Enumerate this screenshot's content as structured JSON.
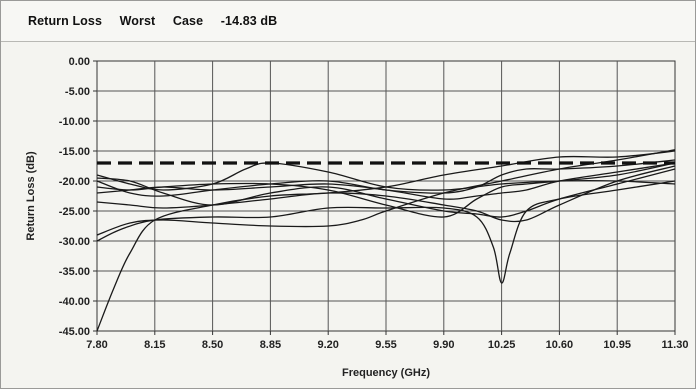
{
  "header": {
    "label": "Return Loss",
    "worst": "Worst",
    "case": "Case",
    "value": "-14.83 dB"
  },
  "chart_data": {
    "type": "line",
    "title": "",
    "xlabel": "Frequency (GHz)",
    "ylabel": "Return Loss (dB)",
    "xlim": [
      7.8,
      11.3
    ],
    "ylim": [
      -45,
      0
    ],
    "x_ticks": [
      "7.80",
      "8.15",
      "8.50",
      "8.85",
      "9.20",
      "9.55",
      "9.90",
      "10.25",
      "10.60",
      "10.95",
      "11.30"
    ],
    "y_ticks": [
      "0.00",
      "-5.00",
      "-10.00",
      "-15.00",
      "-20.00",
      "-25.00",
      "-30.00",
      "-35.00",
      "-40.00",
      "-45.00"
    ],
    "grid": true,
    "spec_limit": {
      "y": -17.0,
      "style": "dashed"
    },
    "series": [
      {
        "x": [
          7.8,
          8.0,
          8.2,
          8.5,
          8.85,
          9.2,
          9.55,
          9.9,
          10.1,
          10.25,
          10.4,
          10.6,
          10.95,
          11.3
        ],
        "y": [
          -19.5,
          -20.0,
          -22.0,
          -24.0,
          -22.0,
          -21.0,
          -23.0,
          -25.0,
          -25.5,
          -26.0,
          -25.0,
          -23.0,
          -20.5,
          -18.0
        ]
      },
      {
        "x": [
          7.8,
          8.0,
          8.2,
          8.5,
          8.85,
          9.2,
          9.55,
          9.9,
          10.1,
          10.25,
          10.4,
          10.6,
          10.95,
          11.3
        ],
        "y": [
          -21.0,
          -21.5,
          -21.0,
          -20.5,
          -20.5,
          -21.5,
          -24.0,
          -26.0,
          -23.0,
          -21.0,
          -20.5,
          -20.0,
          -19.0,
          -17.0
        ]
      },
      {
        "x": [
          7.8,
          8.0,
          8.2,
          8.5,
          8.85,
          9.2,
          9.55,
          9.9,
          10.1,
          10.25,
          10.4,
          10.6,
          10.95,
          11.3
        ],
        "y": [
          -22.0,
          -21.5,
          -21.0,
          -21.5,
          -21.0,
          -20.5,
          -21.5,
          -23.0,
          -22.5,
          -22.0,
          -21.5,
          -20.0,
          -18.5,
          -17.0
        ]
      },
      {
        "x": [
          7.8,
          8.0,
          8.2,
          8.5,
          8.85,
          9.2,
          9.55,
          9.9,
          10.1,
          10.25,
          10.4,
          10.6,
          10.95,
          11.3
        ],
        "y": [
          -23.5,
          -24.0,
          -24.5,
          -24.0,
          -23.0,
          -22.0,
          -22.5,
          -24.0,
          -25.0,
          -26.5,
          -26.5,
          -24.0,
          -20.0,
          -17.5
        ]
      },
      {
        "x": [
          7.8,
          7.95,
          8.15,
          8.5,
          8.85,
          9.2,
          9.55,
          9.9,
          10.1,
          10.2,
          10.25,
          10.3,
          10.4,
          10.6,
          10.95,
          11.3
        ],
        "y": [
          -30.0,
          -28.0,
          -26.5,
          -26.0,
          -26.0,
          -24.5,
          -24.5,
          -24.5,
          -26.0,
          -31.0,
          -37.0,
          -32.0,
          -25.0,
          -23.0,
          -21.5,
          -20.0
        ]
      },
      {
        "x": [
          7.8,
          7.9,
          8.0,
          8.15,
          8.5,
          8.85,
          9.2,
          9.55,
          9.9,
          10.25,
          10.6,
          10.95,
          11.3
        ],
        "y": [
          -45.0,
          -38.0,
          -32.0,
          -26.5,
          -24.0,
          -22.5,
          -22.0,
          -21.0,
          -19.0,
          -17.5,
          -16.0,
          -16.0,
          -15.0
        ]
      },
      {
        "x": [
          7.8,
          8.0,
          8.2,
          8.5,
          8.85,
          9.2,
          9.55,
          9.9,
          10.1,
          10.25,
          10.4,
          10.6,
          10.95,
          11.3
        ],
        "y": [
          -20.0,
          -22.0,
          -22.5,
          -21.5,
          -20.5,
          -20.0,
          -21.5,
          -22.0,
          -21.0,
          -19.0,
          -18.0,
          -18.0,
          -17.5,
          -16.5
        ]
      },
      {
        "x": [
          7.8,
          8.0,
          8.2,
          8.5,
          8.85,
          9.2,
          9.4,
          9.55,
          9.9,
          10.25,
          10.6,
          10.95,
          11.3
        ],
        "y": [
          -29.0,
          -27.0,
          -26.5,
          -27.0,
          -27.5,
          -27.5,
          -26.5,
          -25.0,
          -22.0,
          -20.0,
          -18.0,
          -16.5,
          -14.8
        ]
      },
      {
        "x": [
          7.8,
          8.0,
          8.2,
          8.5,
          8.7,
          8.85,
          9.2,
          9.55,
          9.9,
          10.25,
          10.6,
          10.95,
          11.3
        ],
        "y": [
          -19.0,
          -20.5,
          -21.5,
          -20.5,
          -18.0,
          -17.0,
          -18.5,
          -21.0,
          -21.5,
          -20.5,
          -20.0,
          -20.0,
          -20.5
        ]
      }
    ]
  }
}
